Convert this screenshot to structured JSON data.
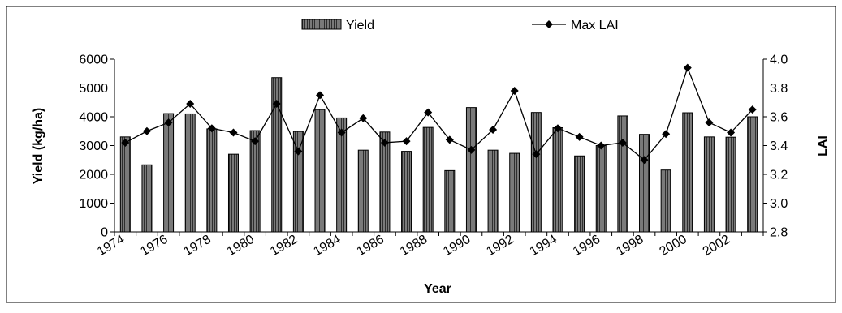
{
  "chart_data": {
    "type": "bar",
    "xlabel": "Year",
    "ylabel": "Yield (kg/ha)",
    "y2label": "LAI",
    "ylim": [
      0,
      6000
    ],
    "y2lim": [
      2.8,
      4.0
    ],
    "yticks": [
      "0",
      "1000",
      "2000",
      "3000",
      "4000",
      "5000",
      "6000"
    ],
    "y2ticks": [
      "2.8",
      "3.0",
      "3.2",
      "3.4",
      "3.6",
      "3.8",
      "4.0"
    ],
    "xtick_labels": [
      "1974",
      "1976",
      "1978",
      "1980",
      "1982",
      "1984",
      "1986",
      "1988",
      "1990",
      "1992",
      "1994",
      "1996",
      "1998",
      "2000",
      "2002"
    ],
    "legend_position": "top",
    "grid": false,
    "x": [
      1974,
      1975,
      1976,
      1977,
      1978,
      1979,
      1980,
      1981,
      1982,
      1983,
      1984,
      1985,
      1986,
      1987,
      1988,
      1989,
      1990,
      1991,
      1992,
      1993,
      1994,
      1995,
      1996,
      1997,
      1998,
      1999,
      2000,
      2001,
      2002,
      2003
    ],
    "series": [
      {
        "name": "Yield",
        "kind": "bar",
        "axis": "left",
        "color": "#555555",
        "values": [
          3300,
          2330,
          4110,
          4100,
          3580,
          2700,
          3520,
          5360,
          3490,
          4250,
          3960,
          2840,
          3470,
          2800,
          3630,
          2130,
          4320,
          2840,
          2730,
          4150,
          3620,
          2640,
          3000,
          4030,
          3390,
          2150,
          4140,
          3300,
          3290,
          4000
        ]
      },
      {
        "name": "Max LAI",
        "kind": "line",
        "axis": "right",
        "color": "#000000",
        "values": [
          3.42,
          3.5,
          3.56,
          3.69,
          3.52,
          3.49,
          3.43,
          3.69,
          3.36,
          3.75,
          3.49,
          3.59,
          3.42,
          3.43,
          3.63,
          3.44,
          3.37,
          3.51,
          3.78,
          3.34,
          3.52,
          3.46,
          3.4,
          3.42,
          3.3,
          3.48,
          3.94,
          3.56,
          3.49,
          3.65
        ]
      }
    ]
  }
}
